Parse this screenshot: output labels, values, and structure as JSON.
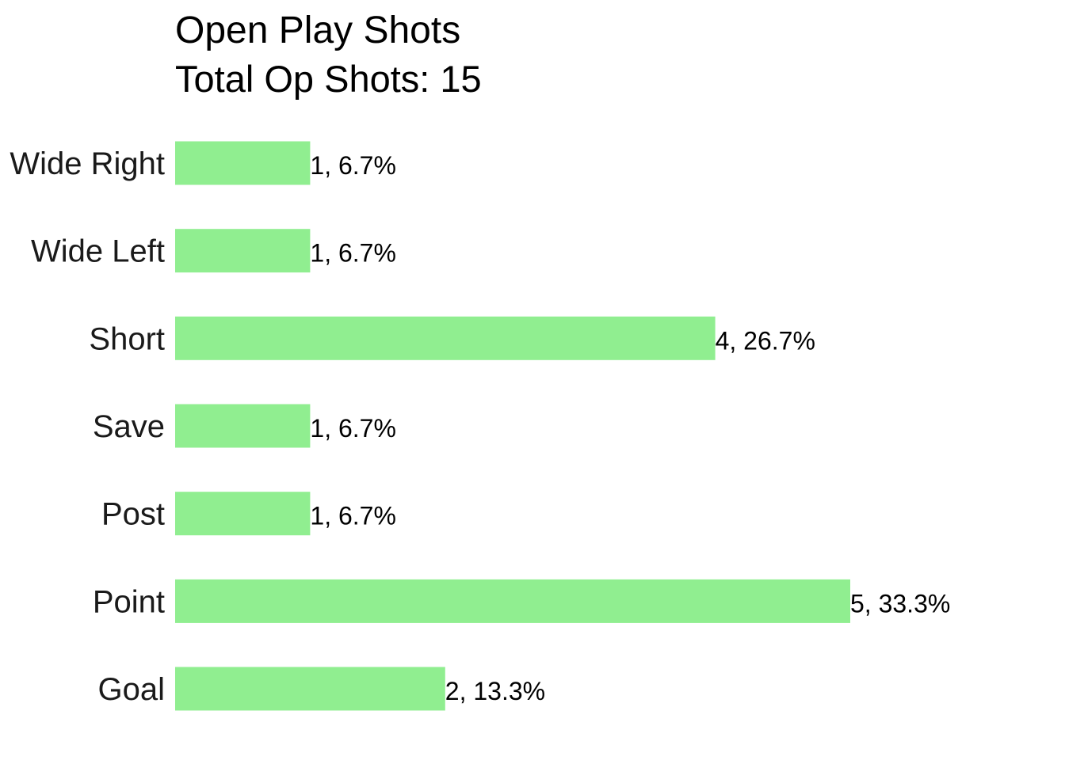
{
  "chart_data": {
    "type": "bar",
    "orientation": "horizontal",
    "title": "Open Play Shots",
    "subtitle": "Total Op Shots: 15",
    "categories": [
      "Wide Right",
      "Wide Left",
      "Short",
      "Save",
      "Post",
      "Point",
      "Goal"
    ],
    "values": [
      1,
      1,
      4,
      1,
      1,
      5,
      2
    ],
    "data_labels": [
      "1, 6.7%",
      "1, 6.7%",
      "4, 26.7%",
      "1, 6.7%",
      "1, 6.7%",
      "5, 33.3%",
      "2, 13.3%"
    ],
    "xlim": [
      0,
      5
    ],
    "grid": false,
    "legend": "none",
    "bar_color": "#90EE90"
  }
}
